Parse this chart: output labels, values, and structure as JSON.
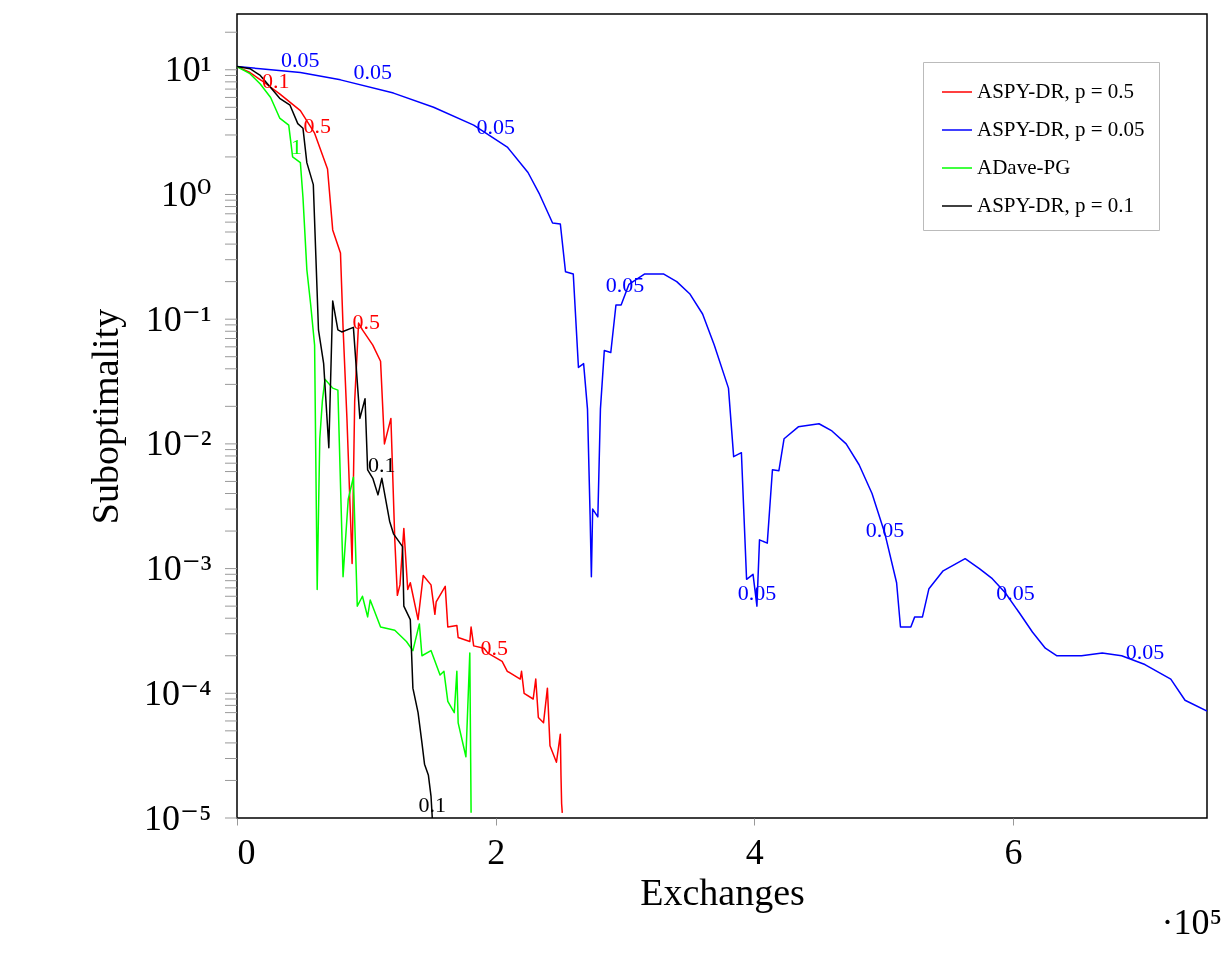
{
  "chart_data": {
    "type": "line",
    "xlabel": "Exchanges",
    "ylabel": "Suboptimality",
    "xlim": [
      0,
      7.5
    ],
    "xticks": [
      0,
      2,
      4,
      6
    ],
    "ylim": [
      1e-05,
      28
    ],
    "log": "y",
    "legend": "top right",
    "yticks": [
      {
        "value": 1e-05,
        "label": "10⁻⁵"
      },
      {
        "value": 2e-05,
        "label": null
      },
      {
        "value": 3e-05,
        "label": null
      },
      {
        "value": 4e-05,
        "label": null
      },
      {
        "value": 5e-05,
        "label": null
      },
      {
        "value": 6e-05,
        "label": null
      },
      {
        "value": 7e-05,
        "label": null
      },
      {
        "value": 8e-05,
        "label": null
      },
      {
        "value": 9e-05,
        "label": null
      },
      {
        "value": 0.0001,
        "label": "10⁻⁴"
      },
      {
        "value": 0.0002,
        "label": null
      },
      {
        "value": 0.0003,
        "label": null
      },
      {
        "value": 0.0004,
        "label": null
      },
      {
        "value": 0.0005,
        "label": null
      },
      {
        "value": 0.0006,
        "label": null
      },
      {
        "value": 0.0007,
        "label": null
      },
      {
        "value": 0.0008,
        "label": null
      },
      {
        "value": 0.0009,
        "label": null
      },
      {
        "value": 0.001,
        "label": "10⁻³"
      },
      {
        "value": 0.002,
        "label": null
      },
      {
        "value": 0.003,
        "label": null
      },
      {
        "value": 0.004,
        "label": null
      },
      {
        "value": 0.005,
        "label": null
      },
      {
        "value": 0.006,
        "label": null
      },
      {
        "value": 0.007,
        "label": null
      },
      {
        "value": 0.008,
        "label": null
      },
      {
        "value": 0.009,
        "label": null
      },
      {
        "value": 0.01,
        "label": "10⁻²"
      },
      {
        "value": 0.02,
        "label": null
      },
      {
        "value": 0.03,
        "label": null
      },
      {
        "value": 0.04,
        "label": null
      },
      {
        "value": 0.05,
        "label": null
      },
      {
        "value": 0.06,
        "label": null
      },
      {
        "value": 0.07,
        "label": null
      },
      {
        "value": 0.08,
        "label": null
      },
      {
        "value": 0.09,
        "label": null
      },
      {
        "value": 0.1,
        "label": "10⁻¹"
      },
      {
        "value": 0.2,
        "label": null
      },
      {
        "value": 0.3,
        "label": null
      },
      {
        "value": 0.4,
        "label": null
      },
      {
        "value": 0.5,
        "label": null
      },
      {
        "value": 0.6,
        "label": null
      },
      {
        "value": 0.7,
        "label": null
      },
      {
        "value": 0.8,
        "label": null
      },
      {
        "value": 0.9,
        "label": null
      },
      {
        "value": 1,
        "label": "10⁰"
      },
      {
        "value": 2,
        "label": null
      },
      {
        "value": 3,
        "label": null
      },
      {
        "value": 4,
        "label": null
      },
      {
        "value": 5,
        "label": null
      },
      {
        "value": 6,
        "label": null
      },
      {
        "value": 7,
        "label": null
      },
      {
        "value": 8,
        "label": null
      },
      {
        "value": 9,
        "label": null
      },
      {
        "value": 10,
        "label": "10¹"
      },
      {
        "value": 20,
        "label": null
      }
    ],
    "series": [
      {
        "name": "ASPY-DR, p = 0.5",
        "color": "#ff0000",
        "x": [
          0,
          0.1,
          0.19,
          0.33,
          0.49,
          0.6,
          0.7,
          0.74,
          0.8,
          0.82,
          0.85,
          0.89,
          0.91,
          0.94,
          0.97,
          1.05,
          1.11,
          1.14,
          1.19,
          1.22,
          1.24,
          1.26,
          1.29,
          1.32,
          1.34,
          1.4,
          1.44,
          1.5,
          1.53,
          1.54,
          1.61,
          1.63,
          1.7,
          1.71,
          1.8,
          1.81,
          1.83,
          1.91,
          1.94,
          2.05,
          2.09,
          2.19,
          2.2,
          2.22,
          2.29,
          2.31,
          2.33,
          2.37,
          2.4,
          2.42,
          2.47,
          2.5,
          2.505,
          2.51,
          2.515
        ],
        "values": [
          10.6,
          9.5,
          8.2,
          6.4,
          4.7,
          3.1,
          1.6,
          0.52,
          0.34,
          0.086,
          0.016,
          0.0011,
          0.022,
          0.093,
          0.082,
          0.062,
          0.046,
          0.01,
          0.016,
          0.0017,
          0.00061,
          0.00074,
          0.0021,
          0.00068,
          0.00077,
          0.00039,
          0.00088,
          0.00074,
          0.00043,
          0.00054,
          0.00072,
          0.00034,
          0.00035,
          0.00028,
          0.00026,
          0.00034,
          0.00024,
          0.00023,
          0.00021,
          0.00018,
          0.00015,
          0.00013,
          0.00015,
          0.0001,
          9e-05,
          0.00013,
          6.4e-05,
          5.8e-05,
          0.00011,
          3.8e-05,
          2.8e-05,
          4.7e-05,
          2.2e-05,
          1.3e-05,
          1.1e-05
        ]
      },
      {
        "name": "ASPY-DR, p = 0.05",
        "color": "#0000ff",
        "x": [
          0,
          0.18,
          0.49,
          0.8,
          1.21,
          1.52,
          1.83,
          2.09,
          2.25,
          2.34,
          2.44,
          2.5,
          2.54,
          2.6,
          2.64,
          2.68,
          2.71,
          2.73,
          2.74,
          2.75,
          2.79,
          2.81,
          2.84,
          2.89,
          2.93,
          2.97,
          3.03,
          3.15,
          3.3,
          3.4,
          3.5,
          3.6,
          3.69,
          3.8,
          3.84,
          3.9,
          3.94,
          3.99,
          4.02,
          4.04,
          4.1,
          4.14,
          4.19,
          4.23,
          4.34,
          4.5,
          4.6,
          4.71,
          4.81,
          4.91,
          5.01,
          5.1,
          5.13,
          5.21,
          5.24,
          5.3,
          5.35,
          5.46,
          5.63,
          5.74,
          5.84,
          5.94,
          6.05,
          6.15,
          6.25,
          6.34,
          6.53,
          6.69,
          6.84,
          7.02,
          7.22,
          7.33,
          7.5
        ],
        "values": [
          10.6,
          10.2,
          9.5,
          8.3,
          6.5,
          5,
          3.6,
          2.4,
          1.5,
          1,
          0.59,
          0.58,
          0.24,
          0.23,
          0.041,
          0.044,
          0.019,
          0.0027,
          0.00086,
          0.003,
          0.0026,
          0.019,
          0.056,
          0.054,
          0.13,
          0.13,
          0.19,
          0.23,
          0.23,
          0.2,
          0.16,
          0.11,
          0.062,
          0.028,
          0.0079,
          0.0085,
          0.00082,
          0.0009,
          0.0005,
          0.0017,
          0.0016,
          0.0062,
          0.0061,
          0.011,
          0.0137,
          0.0145,
          0.0127,
          0.01,
          0.0068,
          0.004,
          0.0019,
          0.00077,
          0.00034,
          0.00034,
          0.00041,
          0.00041,
          0.00069,
          0.00096,
          0.0012,
          0.001,
          0.00083,
          0.00064,
          0.00044,
          0.00031,
          0.00023,
          0.0002,
          0.0002,
          0.00021,
          0.0002,
          0.00017,
          0.00013,
          8.8e-05,
          7.2e-05
        ]
      },
      {
        "name": "ADave-PG",
        "color": "#00ff00",
        "x": [
          0,
          0.1,
          0.18,
          0.26,
          0.33,
          0.4,
          0.43,
          0.49,
          0.51,
          0.54,
          0.57,
          0.6,
          0.62,
          0.64,
          0.66,
          0.68,
          0.74,
          0.78,
          0.82,
          0.86,
          0.9,
          0.93,
          0.97,
          1.01,
          1.03,
          1.11,
          1.22,
          1.31,
          1.36,
          1.41,
          1.43,
          1.5,
          1.57,
          1.6,
          1.63,
          1.68,
          1.7,
          1.71,
          1.77,
          1.8,
          1.81
        ],
        "values": [
          10.6,
          9.3,
          7.7,
          6,
          4.1,
          3.6,
          2,
          1.8,
          0.95,
          0.25,
          0.13,
          0.062,
          0.00068,
          0.011,
          0.022,
          0.033,
          0.028,
          0.027,
          0.00086,
          0.0036,
          0.0054,
          0.0005,
          0.0006,
          0.00041,
          0.00056,
          0.00034,
          0.00032,
          0.00026,
          0.00022,
          0.00036,
          0.0002,
          0.00022,
          0.00014,
          0.00015,
          8.6e-05,
          7e-05,
          0.00015,
          5.8e-05,
          3.1e-05,
          0.00021,
          1.1e-05
        ]
      },
      {
        "name": "ASPY-DR, p = 0.1",
        "color": "#000000",
        "x": [
          0,
          0.1,
          0.18,
          0.26,
          0.33,
          0.41,
          0.47,
          0.51,
          0.54,
          0.59,
          0.63,
          0.67,
          0.71,
          0.74,
          0.78,
          0.81,
          0.9,
          0.95,
          0.99,
          1.01,
          1.05,
          1.09,
          1.12,
          1.18,
          1.21,
          1.28,
          1.29,
          1.34,
          1.36,
          1.4,
          1.43,
          1.45,
          1.48,
          1.5,
          1.51
        ],
        "values": [
          10.6,
          10.2,
          9,
          7.2,
          5.9,
          5.2,
          3.7,
          3.4,
          1.8,
          1.2,
          0.082,
          0.044,
          0.0093,
          0.14,
          0.082,
          0.079,
          0.086,
          0.016,
          0.023,
          0.0062,
          0.0053,
          0.0039,
          0.0053,
          0.0024,
          0.0019,
          0.0015,
          0.0005,
          0.00039,
          0.00011,
          7e-05,
          4e-05,
          2.7e-05,
          2.2e-05,
          1.5e-05,
          1e-05
        ]
      }
    ],
    "annotations": [
      {
        "text": "0.05",
        "x": 0.49,
        "y": 9.5
      },
      {
        "text": "0.1",
        "x": 0.3,
        "y": 6.4
      },
      {
        "text": "1",
        "x": 0.46,
        "y": 1.9
      },
      {
        "text": "0.5",
        "x": 0.62,
        "y": 2.8
      },
      {
        "text": "0.05",
        "x": 1.05,
        "y": 7.6
      },
      {
        "text": "0.05",
        "x": 2,
        "y": 2.75
      },
      {
        "text": "0.05",
        "x": 3,
        "y": 0.147
      },
      {
        "text": "0.05",
        "x": 4.02,
        "y": 0.0005
      },
      {
        "text": "0.05",
        "x": 5.01,
        "y": 0.0016
      },
      {
        "text": "0.05",
        "x": 6.02,
        "y": 0.0005
      },
      {
        "text": "0.05",
        "x": 7.02,
        "y": 0.00017
      },
      {
        "text": "0.5",
        "x": 1,
        "y": 0.074
      },
      {
        "text": "0.5",
        "x": 1.99,
        "y": 0.00018
      },
      {
        "text": "0.1",
        "x": 1.12,
        "y": 0.0053
      },
      {
        "text": "0.1",
        "x": 1.51,
        "y": 1e-05
      },
      "·10⁵"
    ]
  }
}
